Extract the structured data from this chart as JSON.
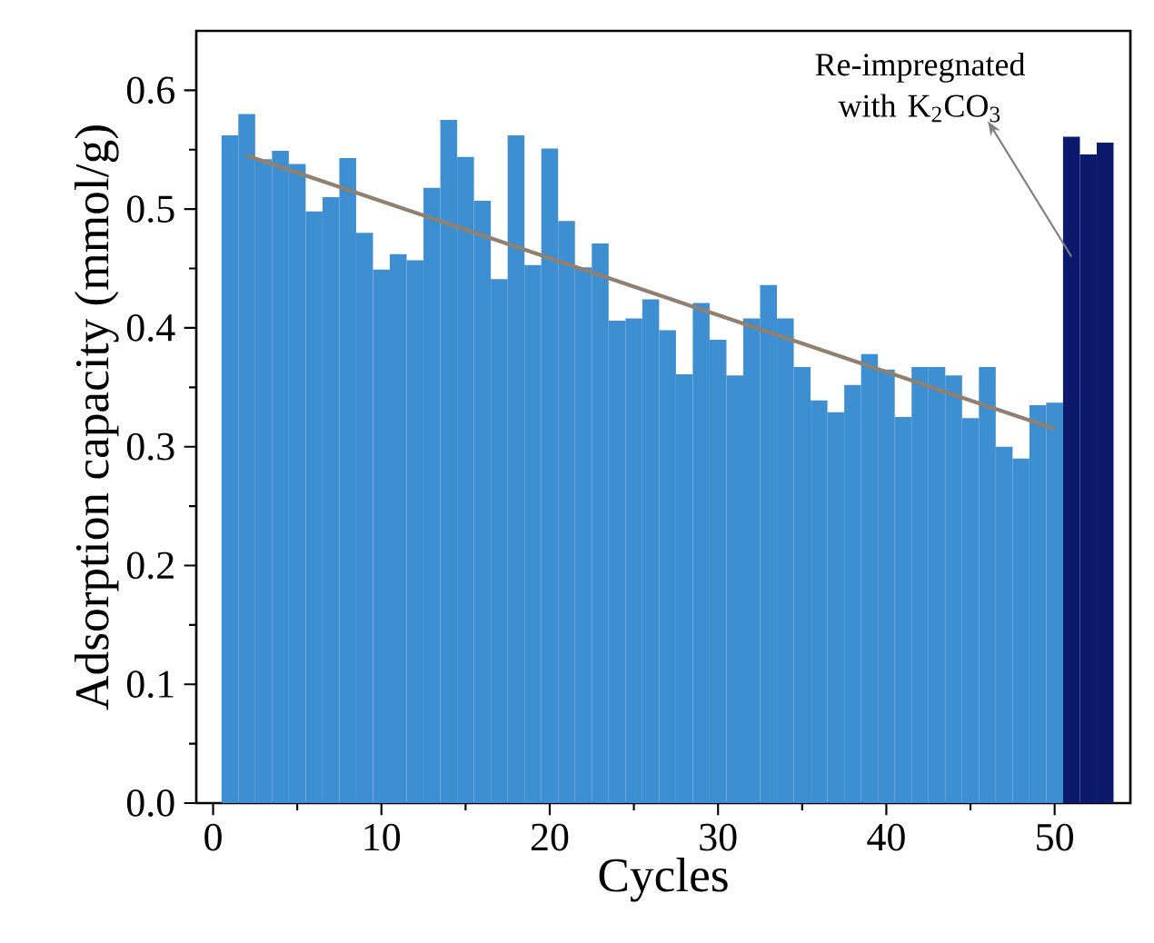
{
  "chart_data": {
    "type": "bar",
    "xlabel": "Cycles",
    "ylabel": "Adsorption capacity (mmol/g)",
    "xlim": [
      -1,
      54.5
    ],
    "ylim": [
      0,
      0.65
    ],
    "xticks": [
      0,
      10,
      20,
      30,
      40,
      50
    ],
    "yticks": [
      {
        "value": 0,
        "label": "0.0"
      },
      {
        "value": 0.1,
        "label": "0.1"
      },
      {
        "value": 0.2,
        "label": "0.2"
      },
      {
        "value": 0.3,
        "label": "0.3"
      },
      {
        "value": 0.4,
        "label": "0.4"
      },
      {
        "value": 0.5,
        "label": "0.5"
      },
      {
        "value": 0.6,
        "label": "0.6"
      }
    ],
    "series": [
      {
        "x": [
          1,
          2,
          3,
          4,
          5,
          6,
          7,
          8,
          9,
          10,
          11,
          12,
          13,
          14,
          15,
          16,
          17,
          18,
          19,
          20,
          21,
          22,
          23,
          24,
          25,
          26,
          27,
          28,
          29,
          30,
          31,
          32,
          33,
          34,
          35,
          36,
          37,
          38,
          39,
          40,
          41,
          42,
          43,
          44,
          45,
          46,
          47,
          48,
          49,
          50,
          51,
          52,
          53
        ],
        "values": [
          0.562,
          0.58,
          0.542,
          0.549,
          0.538,
          0.498,
          0.51,
          0.543,
          0.48,
          0.449,
          0.462,
          0.457,
          0.518,
          0.575,
          0.544,
          0.507,
          0.441,
          0.562,
          0.453,
          0.551,
          0.49,
          0.451,
          0.471,
          0.406,
          0.408,
          0.424,
          0.398,
          0.361,
          0.421,
          0.39,
          0.36,
          0.408,
          0.436,
          0.408,
          0.367,
          0.339,
          0.329,
          0.352,
          0.378,
          0.365,
          0.325,
          0.367,
          0.367,
          0.36,
          0.324,
          0.367,
          0.3,
          0.29,
          0.335,
          0.337,
          0.561,
          0.546,
          0.556
        ],
        "colors": [
          "#3d8fd1",
          "#3d8fd1",
          "#3d8fd1",
          "#3d8fd1",
          "#3d8fd1",
          "#3d8fd1",
          "#3d8fd1",
          "#3d8fd1",
          "#3d8fd1",
          "#3d8fd1",
          "#3d8fd1",
          "#3d8fd1",
          "#3d8fd1",
          "#3d8fd1",
          "#3d8fd1",
          "#3d8fd1",
          "#3d8fd1",
          "#3d8fd1",
          "#3d8fd1",
          "#3d8fd1",
          "#3d8fd1",
          "#3d8fd1",
          "#3d8fd1",
          "#3d8fd1",
          "#3d8fd1",
          "#3d8fd1",
          "#3d8fd1",
          "#3d8fd1",
          "#3d8fd1",
          "#3d8fd1",
          "#3d8fd1",
          "#3d8fd1",
          "#3d8fd1",
          "#3d8fd1",
          "#3d8fd1",
          "#3d8fd1",
          "#3d8fd1",
          "#3d8fd1",
          "#3d8fd1",
          "#3d8fd1",
          "#3d8fd1",
          "#3d8fd1",
          "#3d8fd1",
          "#3d8fd1",
          "#3d8fd1",
          "#3d8fd1",
          "#3d8fd1",
          "#3d8fd1",
          "#3d8fd1",
          "#3d8fd1",
          "#0c1a6e",
          "#0c1a6e",
          "#0c1a6e"
        ]
      },
      {
        "type": "line",
        "x": [
          2,
          50
        ],
        "values": [
          0.545,
          0.315
        ],
        "color": "#8f8070"
      }
    ],
    "annotations": [
      {
        "text": "Re-impregnated with K$_{2}$CO$_{3}$",
        "x": 51,
        "y": 0.46
      }
    ]
  }
}
